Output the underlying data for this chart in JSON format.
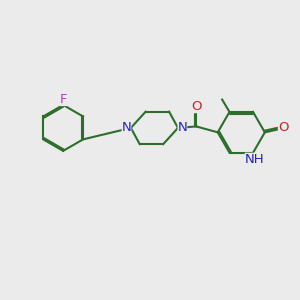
{
  "bg_color": "#ebebeb",
  "bond_color": "#2d6e2d",
  "heteroatom_colors": {
    "F": "#cc33cc",
    "N": "#2222bb",
    "O": "#cc2222",
    "H": "#888888"
  },
  "line_width": 1.5,
  "font_size": 9.5,
  "fig_size": [
    3.0,
    3.0
  ],
  "dpi": 100
}
